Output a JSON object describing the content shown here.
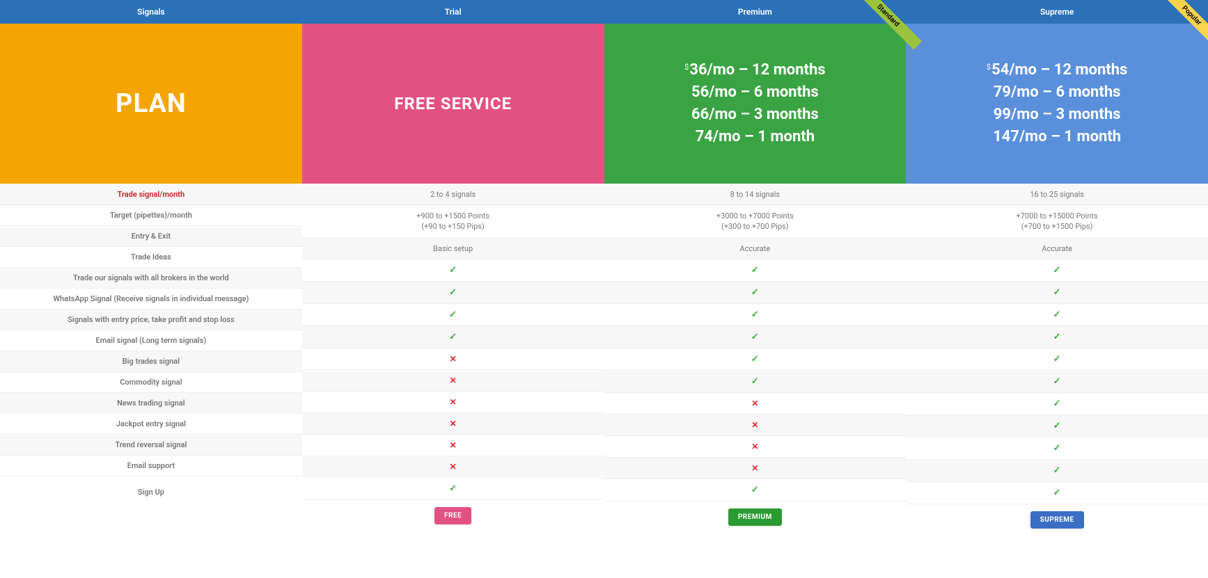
{
  "colors": {
    "header_bg": "#2a71b9",
    "plan_bg": "#f5a406",
    "trial_bg": "#e35183",
    "premium_bg": "#3aa343",
    "supreme_bg": "#5a8fdc",
    "ribbon_premium": "#9bc23c",
    "ribbon_supreme": "#f8d34b",
    "btn_free": "#e35183",
    "btn_premium": "#2b9a33",
    "btn_supreme": "#3b6fc6"
  },
  "headers": {
    "col0": "Signals",
    "col1": "Trial",
    "col2": "Premium",
    "col3": "Supreme"
  },
  "hero": {
    "plan": "PLAN",
    "trial": "FREE SERVICE",
    "premium": {
      "l1": "36/mo – 12 months",
      "l2": "56/mo – 6 months",
      "l3": "66/mo – 3 months",
      "l4": "74/mo – 1 month",
      "ribbon": "Standard"
    },
    "supreme": {
      "l1": "54/mo – 12 months",
      "l2": "79/mo – 6 months",
      "l3": "99/mo – 3 months",
      "l4": "147/mo – 1 month",
      "ribbon": "Popular"
    }
  },
  "rows": [
    {
      "label": "Trade signal/month",
      "label_red": true,
      "trial": "2 to 4 signals",
      "premium": "8 to 14 signals",
      "supreme": "16 to 25 signals"
    },
    {
      "label": "Target (pipettes)/month",
      "trial": "+900 to +1500 Points\n(+90 to +150 Pips)",
      "premium": "+3000 to +7000 Points\n(+300 to +700 Pips)",
      "supreme": "+7000 to +15000 Points\n(+700 to +1500 Pips)"
    },
    {
      "label": "Entry & Exit",
      "trial": "Basic setup",
      "premium": "Accurate",
      "supreme": "Accurate"
    },
    {
      "label": "Trade Ideas",
      "trial": "check",
      "premium": "check",
      "supreme": "check"
    },
    {
      "label": "Trade our signals with all brokers in the world",
      "trial": "check",
      "premium": "check",
      "supreme": "check"
    },
    {
      "label": "WhatsApp Signal (Receive signals in individual message)",
      "trial": "check",
      "premium": "check",
      "supreme": "check"
    },
    {
      "label": "Signals with entry price, take profit and stop loss",
      "trial": "check",
      "premium": "check",
      "supreme": "check"
    },
    {
      "label": "Email signal (Long term signals)",
      "trial": "cross",
      "premium": "check",
      "supreme": "check"
    },
    {
      "label": "Big trades signal",
      "trial": "cross",
      "premium": "check",
      "supreme": "check"
    },
    {
      "label": "Commodity signal",
      "trial": "cross",
      "premium": "cross",
      "supreme": "check"
    },
    {
      "label": "News trading signal",
      "trial": "cross",
      "premium": "cross",
      "supreme": "check"
    },
    {
      "label": "Jackpot entry signal",
      "trial": "cross",
      "premium": "cross",
      "supreme": "check"
    },
    {
      "label": "Trend reversal signal",
      "trial": "cross",
      "premium": "cross",
      "supreme": "check"
    },
    {
      "label": "Email support",
      "trial": "check",
      "premium": "check",
      "supreme": "check"
    }
  ],
  "signup": {
    "label": "Sign Up",
    "trial_btn": "FREE",
    "premium_btn": "PREMIUM",
    "supreme_btn": "SUPREME"
  }
}
